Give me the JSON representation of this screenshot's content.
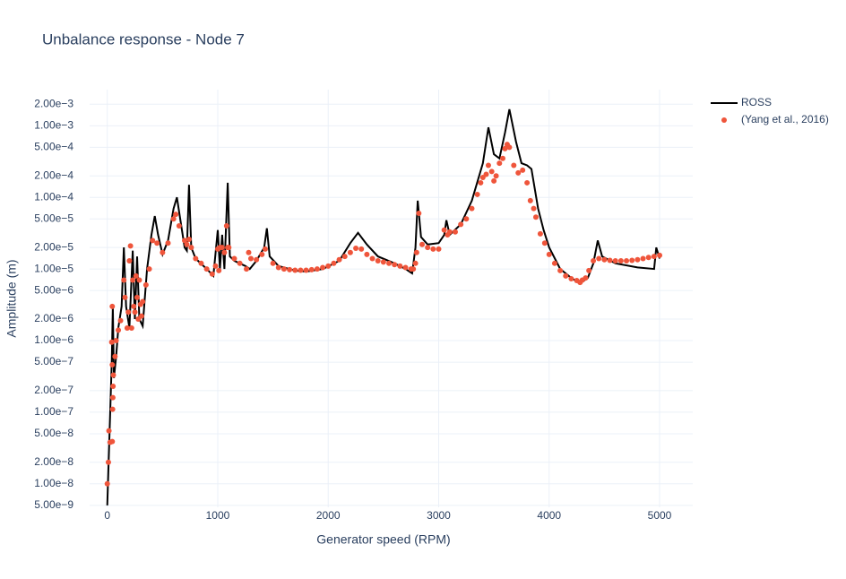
{
  "chart_data": {
    "type": "line",
    "title": "Unbalance response - Node 7",
    "xlabel": "Generator speed (RPM)",
    "ylabel": "Amplitude (m)",
    "xlim": [
      -160,
      5300
    ],
    "ylim": [
      4.7e-09,
      0.0032
    ],
    "yscale": "log",
    "grid": true,
    "legend": "top-right",
    "xticks": [
      0,
      1000,
      2000,
      3000,
      4000,
      5000
    ],
    "yticks": [
      {
        "value": 0.002,
        "label": "2.00e−3"
      },
      {
        "value": 0.001,
        "label": "1.00e−3"
      },
      {
        "value": 0.0005,
        "label": "5.00e−4"
      },
      {
        "value": 0.0002,
        "label": "2.00e−4"
      },
      {
        "value": 0.0001,
        "label": "1.00e−4"
      },
      {
        "value": 5e-05,
        "label": "5.00e−5"
      },
      {
        "value": 2e-05,
        "label": "2.00e−5"
      },
      {
        "value": 1e-05,
        "label": "1.00e−5"
      },
      {
        "value": 5e-06,
        "label": "5.00e−6"
      },
      {
        "value": 2e-06,
        "label": "2.00e−6"
      },
      {
        "value": 1e-06,
        "label": "1.00e−6"
      },
      {
        "value": 5e-07,
        "label": "5.00e−7"
      },
      {
        "value": 2e-07,
        "label": "2.00e−7"
      },
      {
        "value": 1e-07,
        "label": "1.00e−7"
      },
      {
        "value": 5e-08,
        "label": "5.00e−8"
      },
      {
        "value": 2e-08,
        "label": "2.00e−8"
      },
      {
        "value": 1e-08,
        "label": "1.00e−8"
      },
      {
        "value": 5e-09,
        "label": "5.00e−9"
      }
    ],
    "series": [
      {
        "name": "ROSS",
        "type": "line",
        "color": "#000000",
        "x": [
          0,
          20,
          40,
          50,
          60,
          80,
          100,
          130,
          150,
          170,
          200,
          230,
          250,
          270,
          290,
          320,
          360,
          400,
          430,
          460,
          500,
          550,
          600,
          630,
          660,
          700,
          720,
          740,
          760,
          800,
          900,
          960,
          1000,
          1020,
          1040,
          1060,
          1090,
          1110,
          1150,
          1250,
          1290,
          1350,
          1420,
          1445,
          1470,
          1550,
          1700,
          1800,
          1950,
          2100,
          2200,
          2270,
          2350,
          2450,
          2600,
          2700,
          2760,
          2790,
          2810,
          2840,
          2900,
          3000,
          3050,
          3070,
          3100,
          3200,
          3300,
          3400,
          3450,
          3500,
          3550,
          3600,
          3640,
          3700,
          3750,
          3800,
          3840,
          3900,
          3950,
          4000,
          4100,
          4200,
          4280,
          4350,
          4400,
          4440,
          4480,
          4600,
          4800,
          4950,
          4970,
          5000
        ],
        "values": [
          5e-09,
          5e-08,
          5e-07,
          3e-06,
          3e-07,
          6e-07,
          1.5e-06,
          3e-06,
          2e-05,
          3e-06,
          1.5e-06,
          1.8e-05,
          2e-06,
          1.5e-05,
          2e-06,
          1.6e-06,
          1e-05,
          3e-05,
          5.5e-05,
          3e-05,
          1.6e-05,
          2.5e-05,
          7e-05,
          0.0001,
          5e-05,
          2e-05,
          1.8e-05,
          0.00015,
          2e-05,
          1.4e-05,
          1e-05,
          8e-06,
          3.5e-05,
          1e-05,
          3e-05,
          1e-05,
          0.00016,
          1.5e-05,
          1.3e-05,
          1.1e-05,
          1e-05,
          1.3e-05,
          2e-05,
          3.7e-05,
          1.5e-05,
          1.1e-05,
          9.5e-06,
          9.2e-06,
          1e-05,
          1.3e-05,
          2.3e-05,
          3.2e-05,
          2.2e-05,
          1.5e-05,
          1.2e-05,
          1e-05,
          8.7e-06,
          2e-05,
          9e-05,
          2.8e-05,
          2.2e-05,
          2.3e-05,
          3e-05,
          4.8e-05,
          3e-05,
          4.2e-05,
          9e-05,
          0.0003,
          0.00095,
          0.0004,
          0.00035,
          0.0008,
          0.0017,
          0.0006,
          0.0003,
          0.00028,
          0.00025,
          7e-05,
          3.5e-05,
          2e-05,
          1e-05,
          7.5e-06,
          6.3e-06,
          7.5e-06,
          1.2e-05,
          2.5e-05,
          1.5e-05,
          1.2e-05,
          1.05e-05,
          1e-05,
          2e-05,
          1.4e-05
        ]
      },
      {
        "name": "(Yang et al., 2016)",
        "type": "scatter",
        "color": "#ef553b",
        "x": [
          0,
          10,
          15,
          25,
          45,
          48,
          50,
          52,
          55,
          45,
          40,
          45,
          70,
          80,
          100,
          120,
          150,
          160,
          180,
          190,
          200,
          210,
          220,
          230,
          240,
          250,
          260,
          270,
          280,
          290,
          300,
          310,
          320,
          350,
          380,
          410,
          450,
          500,
          550,
          600,
          620,
          650,
          700,
          720,
          740,
          760,
          800,
          850,
          900,
          950,
          980,
          1000,
          1010,
          1020,
          1040,
          1060,
          1080,
          1090,
          1100,
          1150,
          1200,
          1260,
          1280,
          1300,
          1350,
          1400,
          1430,
          1500,
          1550,
          1600,
          1650,
          1700,
          1750,
          1800,
          1850,
          1900,
          1950,
          2000,
          2050,
          2100,
          2150,
          2200,
          2250,
          2300,
          2350,
          2400,
          2450,
          2500,
          2550,
          2600,
          2650,
          2700,
          2750,
          2770,
          2790,
          2800,
          2820,
          2850,
          2900,
          2950,
          3000,
          3050,
          3080,
          3100,
          3150,
          3200,
          3250,
          3300,
          3350,
          3380,
          3400,
          3430,
          3450,
          3480,
          3500,
          3520,
          3550,
          3580,
          3600,
          3620,
          3640,
          3680,
          3720,
          3760,
          3800,
          3830,
          3860,
          3880,
          3920,
          3960,
          4000,
          4050,
          4100,
          4150,
          4200,
          4250,
          4280,
          4300,
          4330,
          4360,
          4400,
          4450,
          4500,
          4550,
          4600,
          4650,
          4700,
          4750,
          4800,
          4850,
          4900,
          4950,
          5000
        ],
        "values": [
          1e-08,
          2e-08,
          5.5e-08,
          3.8e-08,
          3.9e-08,
          1.1e-07,
          1.6e-07,
          2.3e-07,
          3.3e-07,
          4.6e-07,
          9.5e-07,
          3e-06,
          6e-07,
          1e-06,
          1.4e-06,
          1.9e-06,
          7e-06,
          4e-06,
          1.5e-06,
          2.5e-06,
          1.3e-05,
          2.1e-05,
          1.5e-06,
          7e-06,
          3e-06,
          2.5e-06,
          8e-06,
          4e-06,
          2e-06,
          7e-06,
          3.2e-06,
          2.2e-06,
          3.5e-06,
          6e-06,
          1e-05,
          2.5e-05,
          2.3e-05,
          1.7e-05,
          2.3e-05,
          5e-05,
          5.8e-05,
          4e-05,
          2.5e-05,
          2.2e-05,
          2.6e-05,
          2e-05,
          1.4e-05,
          1.2e-05,
          1e-05,
          8.5e-06,
          1.1e-05,
          1.9e-05,
          9.5e-06,
          2e-05,
          2e-05,
          1.7e-05,
          4e-05,
          2e-05,
          2e-05,
          1.4e-05,
          1.2e-05,
          1e-05,
          1.7e-05,
          1.4e-05,
          1.35e-05,
          1.6e-05,
          1.9e-05,
          1.2e-05,
          1.05e-05,
          1e-05,
          9.8e-06,
          9.6e-06,
          9.6e-06,
          9.6e-06,
          9.8e-06,
          1e-05,
          1.05e-05,
          1.1e-05,
          1.2e-05,
          1.35e-05,
          1.5e-05,
          1.7e-05,
          1.95e-05,
          1.9e-05,
          1.6e-05,
          1.4e-05,
          1.3e-05,
          1.25e-05,
          1.2e-05,
          1.15e-05,
          1.1e-05,
          1.05e-05,
          1e-05,
          1e-05,
          1.2e-05,
          1.7e-05,
          6e-05,
          2.2e-05,
          2e-05,
          1.9e-05,
          1.9e-05,
          3.5e-05,
          3e-05,
          3.3e-05,
          3.3e-05,
          4.2e-05,
          5e-05,
          7e-05,
          0.00011,
          0.00016,
          0.00019,
          0.00021,
          0.00028,
          0.00023,
          0.00017,
          0.0002,
          0.0003,
          0.00035,
          0.00048,
          0.00055,
          0.0005,
          0.00028,
          0.00022,
          0.00024,
          0.00016,
          9e-05,
          7e-05,
          5.3e-05,
          3.1e-05,
          2.3e-05,
          1.6e-05,
          1.2e-05,
          9.5e-06,
          8e-06,
          7.3e-06,
          6.9e-06,
          6.5e-06,
          7e-06,
          7.5e-06,
          9.5e-06,
          1.3e-05,
          1.4e-05,
          1.35e-05,
          1.32e-05,
          1.3e-05,
          1.3e-05,
          1.3e-05,
          1.32e-05,
          1.35e-05,
          1.4e-05,
          1.45e-05,
          1.5e-05,
          1.55e-05
        ]
      }
    ]
  }
}
